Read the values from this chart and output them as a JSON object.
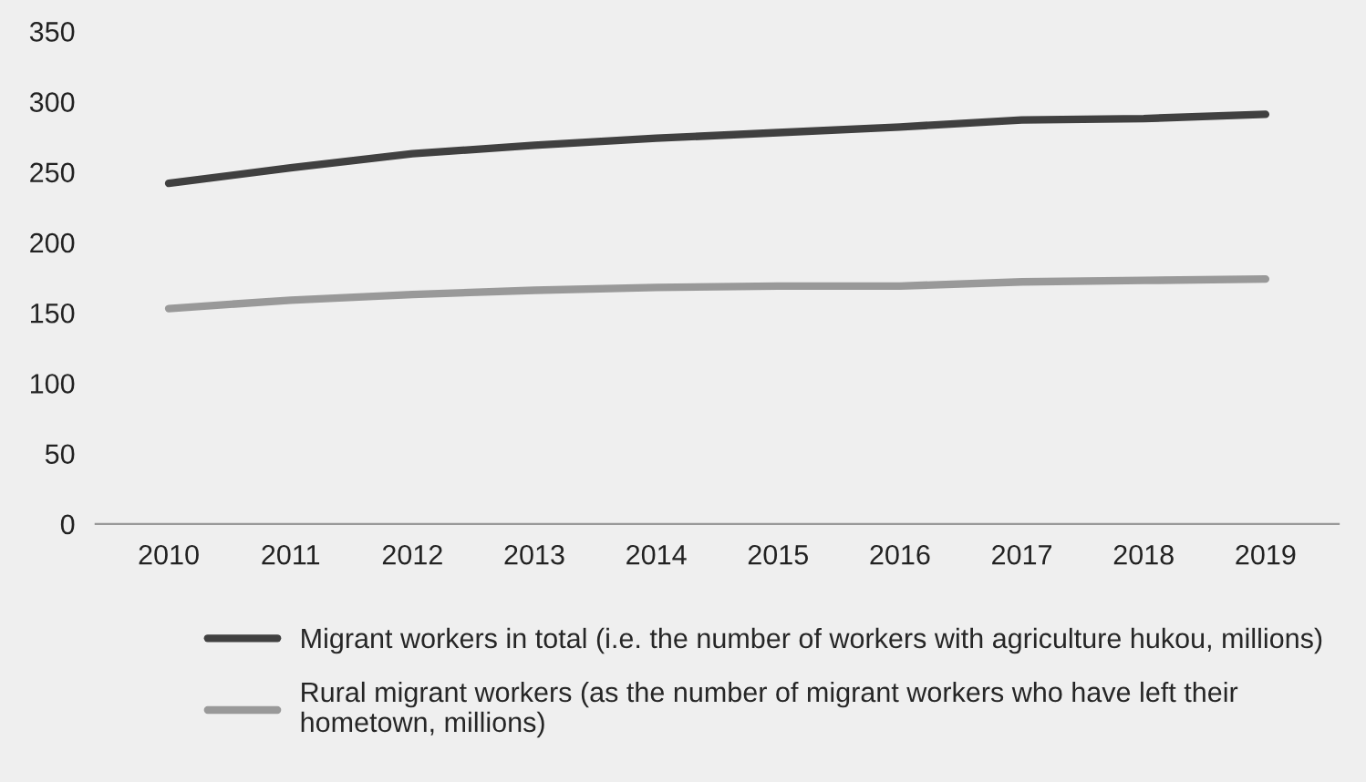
{
  "chart_data": {
    "type": "line",
    "categories": [
      "2010",
      "2011",
      "2012",
      "2013",
      "2014",
      "2015",
      "2016",
      "2017",
      "2018",
      "2019"
    ],
    "series": [
      {
        "name": "Migrant workers in total (i.e. the number of workers with agriculture hukou, millions)",
        "color": "#404040",
        "values": [
          242,
          253,
          263,
          269,
          274,
          278,
          282,
          287,
          288,
          291
        ]
      },
      {
        "name": "Rural migrant workers (as the number of migrant workers who have left their hometown, millions)",
        "color": "#999999",
        "values": [
          153,
          159,
          163,
          166,
          168,
          169,
          169,
          172,
          173,
          174
        ]
      }
    ],
    "ylim": [
      0,
      350
    ],
    "yticks": [
      0,
      50,
      100,
      150,
      200,
      250,
      300,
      350
    ],
    "grid": false,
    "legend": "bottom",
    "marker": "none",
    "line_style": "solid"
  }
}
